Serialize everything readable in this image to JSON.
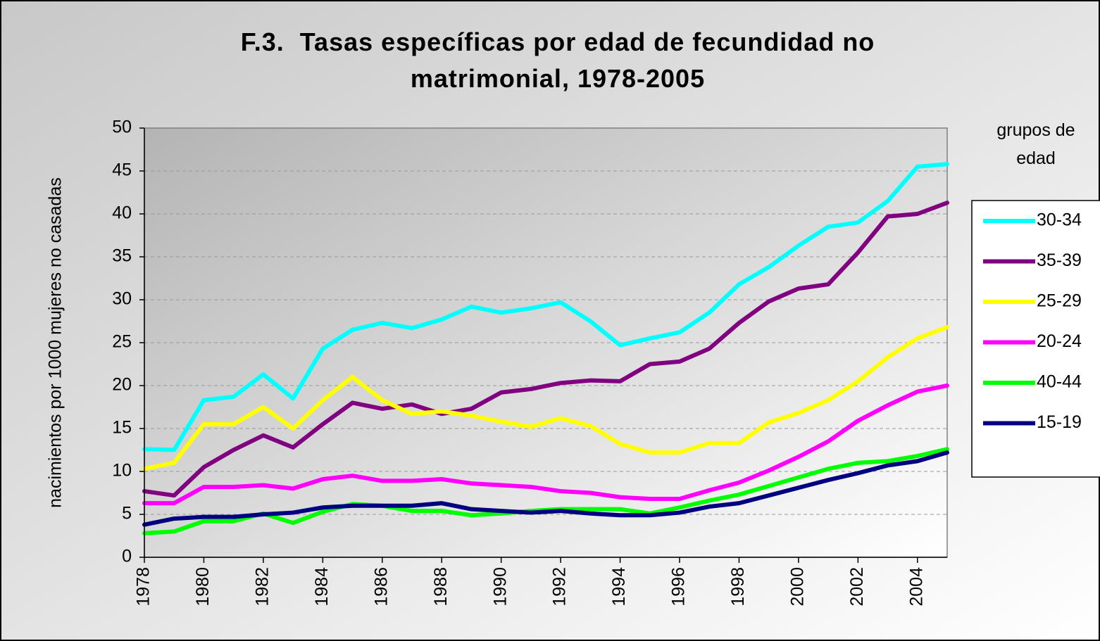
{
  "chart_data": {
    "type": "line",
    "title": "F.3.  Tasas específicas por edad de fecundidad no matrimonial, 1978-2005",
    "y_label": "nacimientos por 1000 mujeres no casadas",
    "legend_title": "grupos de edad",
    "legend": "right",
    "grid": true,
    "x": [
      1978,
      1979,
      1980,
      1981,
      1982,
      1983,
      1984,
      1985,
      1986,
      1987,
      1988,
      1989,
      1990,
      1991,
      1992,
      1993,
      1994,
      1995,
      1996,
      1997,
      1998,
      1999,
      2000,
      2001,
      2002,
      2003,
      2004,
      2005
    ],
    "xlim": [
      1978,
      2005
    ],
    "xticks": [
      1978,
      1980,
      1982,
      1984,
      1986,
      1988,
      1990,
      1992,
      1994,
      1996,
      1998,
      2000,
      2002,
      2004
    ],
    "ylim": [
      0,
      50
    ],
    "yticks": [
      0,
      5,
      10,
      15,
      20,
      25,
      30,
      35,
      40,
      45,
      50
    ],
    "series": [
      {
        "name": "30-34",
        "color": "#00ffff",
        "values": [
          12.6,
          12.5,
          18.3,
          18.7,
          21.3,
          18.5,
          24.3,
          26.5,
          27.3,
          26.7,
          27.7,
          29.2,
          28.5,
          29,
          29.7,
          27.5,
          24.7,
          25.5,
          26.2,
          28.5,
          31.8,
          33.8,
          36.3,
          38.5,
          39,
          41.5,
          45.5,
          45.8
        ]
      },
      {
        "name": "35-39",
        "color": "#800080",
        "values": [
          7.7,
          7.2,
          10.5,
          12.5,
          14.2,
          12.8,
          15.5,
          18,
          17.3,
          17.8,
          16.7,
          17.3,
          19.2,
          19.6,
          20.3,
          20.6,
          20.5,
          22.5,
          22.8,
          24.3,
          27.3,
          29.8,
          31.3,
          31.8,
          35.5,
          39.7,
          40,
          41.3
        ]
      },
      {
        "name": "25-29",
        "color": "#ffff00",
        "values": [
          10.3,
          11,
          15.5,
          15.5,
          17.5,
          15,
          18.3,
          21,
          18.3,
          16.7,
          17,
          16.5,
          15.8,
          15.2,
          16.2,
          15.3,
          13.2,
          12.2,
          12.2,
          13.3,
          13.3,
          15.7,
          16.8,
          18.3,
          20.5,
          23.3,
          25.5,
          26.8
        ]
      },
      {
        "name": "20-24",
        "color": "#ff00ff",
        "values": [
          6.3,
          6.3,
          8.2,
          8.2,
          8.4,
          8,
          9.1,
          9.5,
          8.9,
          8.9,
          9.1,
          8.6,
          8.4,
          8.2,
          7.7,
          7.5,
          7,
          6.8,
          6.8,
          7.8,
          8.7,
          10.1,
          11.7,
          13.5,
          15.9,
          17.7,
          19.3,
          20
        ]
      },
      {
        "name": "40-44",
        "color": "#00ff00",
        "values": [
          2.8,
          3,
          4.2,
          4.2,
          5.1,
          4,
          5.3,
          6.2,
          6,
          5.4,
          5.4,
          4.9,
          5.1,
          5.4,
          5.6,
          5.6,
          5.6,
          5.1,
          5.8,
          6.6,
          7.3,
          8.3,
          9.3,
          10.3,
          11,
          11.2,
          11.8,
          12.6
        ]
      },
      {
        "name": "15-19",
        "color": "#000080",
        "values": [
          3.8,
          4.5,
          4.7,
          4.7,
          5,
          5.2,
          5.8,
          6,
          6,
          6,
          6.3,
          5.6,
          5.4,
          5.2,
          5.4,
          5.1,
          4.9,
          4.9,
          5.2,
          5.9,
          6.3,
          7.2,
          8.1,
          9,
          9.8,
          10.7,
          11.2,
          12.2
        ]
      }
    ]
  }
}
